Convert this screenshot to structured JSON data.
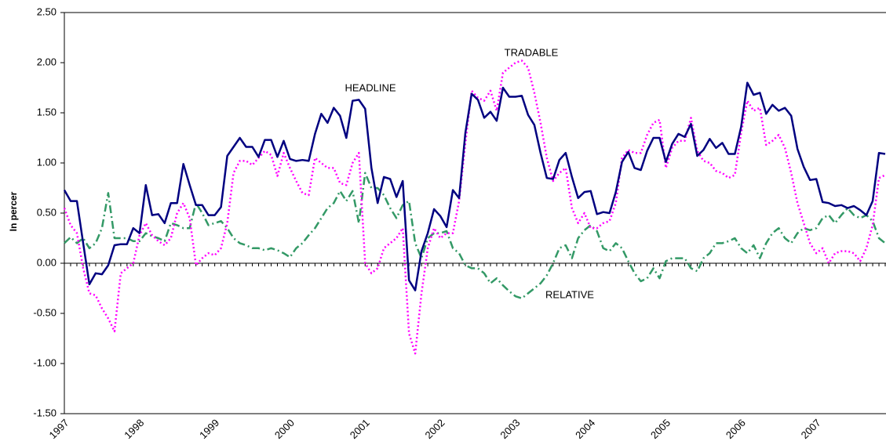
{
  "chart_data": {
    "type": "line",
    "y_label": "In percer",
    "annotations": [
      {
        "text": "HEADLINE",
        "series": 0
      },
      {
        "text": "TRADABLE",
        "series": 1
      },
      {
        "text": "RELATIVE",
        "series": 2
      }
    ],
    "categories": [
      "1997",
      null,
      null,
      null,
      null,
      null,
      null,
      null,
      null,
      null,
      null,
      null,
      "1998",
      null,
      null,
      null,
      null,
      null,
      null,
      null,
      null,
      null,
      null,
      null,
      "1999",
      null,
      null,
      null,
      null,
      null,
      null,
      null,
      null,
      null,
      null,
      null,
      "2000",
      null,
      null,
      null,
      null,
      null,
      null,
      null,
      null,
      null,
      null,
      null,
      "2001",
      null,
      null,
      null,
      null,
      null,
      null,
      null,
      null,
      null,
      null,
      null,
      "2002",
      null,
      null,
      null,
      null,
      null,
      null,
      null,
      null,
      null,
      null,
      null,
      "2003",
      null,
      null,
      null,
      null,
      null,
      null,
      null,
      null,
      null,
      null,
      null,
      "2004",
      null,
      null,
      null,
      null,
      null,
      null,
      null,
      null,
      null,
      null,
      null,
      "2005",
      null,
      null,
      null,
      null,
      null,
      null,
      null,
      null,
      null,
      null,
      null,
      "2006",
      null,
      null,
      null,
      null,
      null,
      null,
      null,
      null,
      null,
      null,
      null,
      "2007",
      null,
      null,
      null,
      null,
      null,
      null,
      null,
      null,
      null,
      null,
      null
    ],
    "series": [
      {
        "name": "HEADLINE",
        "color": "#000080",
        "dash": "solid",
        "values": [
          0.73,
          0.62,
          0.62,
          0.2,
          -0.21,
          -0.1,
          -0.11,
          -0.02,
          0.18,
          0.19,
          0.19,
          0.35,
          0.3,
          0.78,
          0.48,
          0.49,
          0.4,
          0.6,
          0.6,
          0.99,
          0.78,
          0.58,
          0.58,
          0.48,
          0.48,
          0.56,
          1.07,
          1.16,
          1.25,
          1.16,
          1.16,
          1.06,
          1.23,
          1.23,
          1.06,
          1.22,
          1.04,
          1.02,
          1.03,
          1.02,
          1.29,
          1.49,
          1.4,
          1.55,
          1.47,
          1.25,
          1.62,
          1.63,
          1.54,
          0.95,
          0.6,
          0.86,
          0.84,
          0.66,
          0.82,
          -0.17,
          -0.27,
          0.12,
          0.3,
          0.54,
          0.47,
          0.36,
          0.73,
          0.65,
          1.3,
          1.69,
          1.63,
          1.45,
          1.51,
          1.42,
          1.75,
          1.66,
          1.66,
          1.67,
          1.48,
          1.38,
          1.1,
          0.85,
          0.84,
          1.03,
          1.1,
          0.86,
          0.65,
          0.71,
          0.72,
          0.49,
          0.51,
          0.5,
          0.71,
          1.01,
          1.11,
          0.95,
          0.93,
          1.12,
          1.25,
          1.25,
          1.01,
          1.19,
          1.29,
          1.26,
          1.39,
          1.07,
          1.13,
          1.24,
          1.15,
          1.2,
          1.09,
          1.09,
          1.36,
          1.8,
          1.68,
          1.7,
          1.49,
          1.58,
          1.52,
          1.55,
          1.47,
          1.14,
          0.96,
          0.83,
          0.84,
          0.61,
          0.6,
          0.57,
          0.58,
          0.55,
          0.57,
          0.53,
          0.48,
          0.62,
          1.1,
          1.09
        ]
      },
      {
        "name": "TRADABLE",
        "color": "#ff00ff",
        "dash": "dotted",
        "values": [
          0.55,
          0.38,
          0.3,
          -0.05,
          -0.3,
          -0.32,
          -0.45,
          -0.55,
          -0.68,
          -0.1,
          -0.05,
          0.0,
          0.28,
          0.4,
          0.28,
          0.22,
          0.18,
          0.25,
          0.5,
          0.6,
          0.45,
          -0.02,
          0.05,
          0.1,
          0.08,
          0.15,
          0.4,
          0.9,
          1.02,
          1.02,
          0.98,
          1.05,
          1.12,
          1.08,
          0.87,
          1.1,
          0.95,
          0.82,
          0.7,
          0.68,
          1.05,
          1.0,
          0.95,
          0.95,
          0.8,
          0.78,
          1.0,
          1.1,
          0.0,
          -0.1,
          -0.05,
          0.15,
          0.2,
          0.25,
          0.35,
          -0.7,
          -0.9,
          -0.3,
          0.15,
          0.35,
          0.25,
          0.3,
          0.3,
          0.62,
          1.2,
          1.72,
          1.65,
          1.62,
          1.72,
          1.52,
          1.9,
          1.95,
          2.0,
          2.02,
          1.95,
          1.7,
          1.4,
          1.05,
          0.82,
          0.9,
          0.95,
          0.55,
          0.4,
          0.5,
          0.35,
          0.35,
          0.4,
          0.42,
          0.6,
          1.05,
          1.13,
          1.1,
          1.1,
          1.28,
          1.4,
          1.43,
          0.95,
          1.15,
          1.22,
          1.22,
          1.45,
          1.12,
          1.02,
          1.0,
          0.92,
          0.9,
          0.85,
          0.88,
          1.3,
          1.62,
          1.52,
          1.55,
          1.18,
          1.22,
          1.28,
          1.15,
          0.9,
          0.6,
          0.4,
          0.2,
          0.1,
          0.15,
          0.0,
          0.1,
          0.12,
          0.12,
          0.1,
          0.02,
          0.15,
          0.38,
          0.85,
          0.88
        ]
      },
      {
        "name": "RELATIVE",
        "color": "#339966",
        "dash": "dashdot",
        "values": [
          0.2,
          0.26,
          0.2,
          0.25,
          0.15,
          0.2,
          0.35,
          0.7,
          0.25,
          0.25,
          0.25,
          0.22,
          0.22,
          0.3,
          0.27,
          0.25,
          0.22,
          0.4,
          0.38,
          0.35,
          0.35,
          0.6,
          0.5,
          0.38,
          0.4,
          0.42,
          0.35,
          0.25,
          0.2,
          0.18,
          0.15,
          0.15,
          0.13,
          0.15,
          0.13,
          0.1,
          0.06,
          0.15,
          0.2,
          0.28,
          0.35,
          0.45,
          0.55,
          0.6,
          0.72,
          0.62,
          0.72,
          0.4,
          0.9,
          0.75,
          0.75,
          0.68,
          0.55,
          0.45,
          0.58,
          0.62,
          0.2,
          0.05,
          0.25,
          0.3,
          0.3,
          0.32,
          0.15,
          0.1,
          -0.02,
          -0.05,
          -0.05,
          -0.1,
          -0.2,
          -0.15,
          -0.22,
          -0.28,
          -0.33,
          -0.35,
          -0.3,
          -0.25,
          -0.2,
          -0.12,
          0.0,
          0.15,
          0.18,
          0.05,
          0.25,
          0.33,
          0.38,
          0.32,
          0.15,
          0.12,
          0.2,
          0.15,
          0.02,
          -0.1,
          -0.18,
          -0.15,
          -0.05,
          -0.15,
          0.02,
          0.05,
          0.05,
          0.05,
          -0.05,
          -0.08,
          0.05,
          0.1,
          0.2,
          0.2,
          0.22,
          0.25,
          0.15,
          0.1,
          0.18,
          0.05,
          0.2,
          0.3,
          0.35,
          0.25,
          0.2,
          0.3,
          0.35,
          0.33,
          0.35,
          0.45,
          0.48,
          0.4,
          0.48,
          0.55,
          0.48,
          0.45,
          0.48,
          0.42,
          0.25,
          0.2
        ]
      }
    ],
    "ylim": [
      -1.5,
      2.5
    ],
    "yticks": [
      {
        "value": -1.5,
        "label": "-1.50"
      },
      {
        "value": -1,
        "label": "-1.00"
      },
      {
        "value": -0.5,
        "label": "-0.50"
      },
      {
        "value": 0,
        "label": "0.00"
      },
      {
        "value": 0.5,
        "label": "0.50"
      },
      {
        "value": 1,
        "label": "1.00"
      },
      {
        "value": 1.5,
        "label": "1.50"
      },
      {
        "value": 2,
        "label": "2.00"
      },
      {
        "value": 2.5,
        "label": "2.50"
      }
    ],
    "grid": false
  }
}
